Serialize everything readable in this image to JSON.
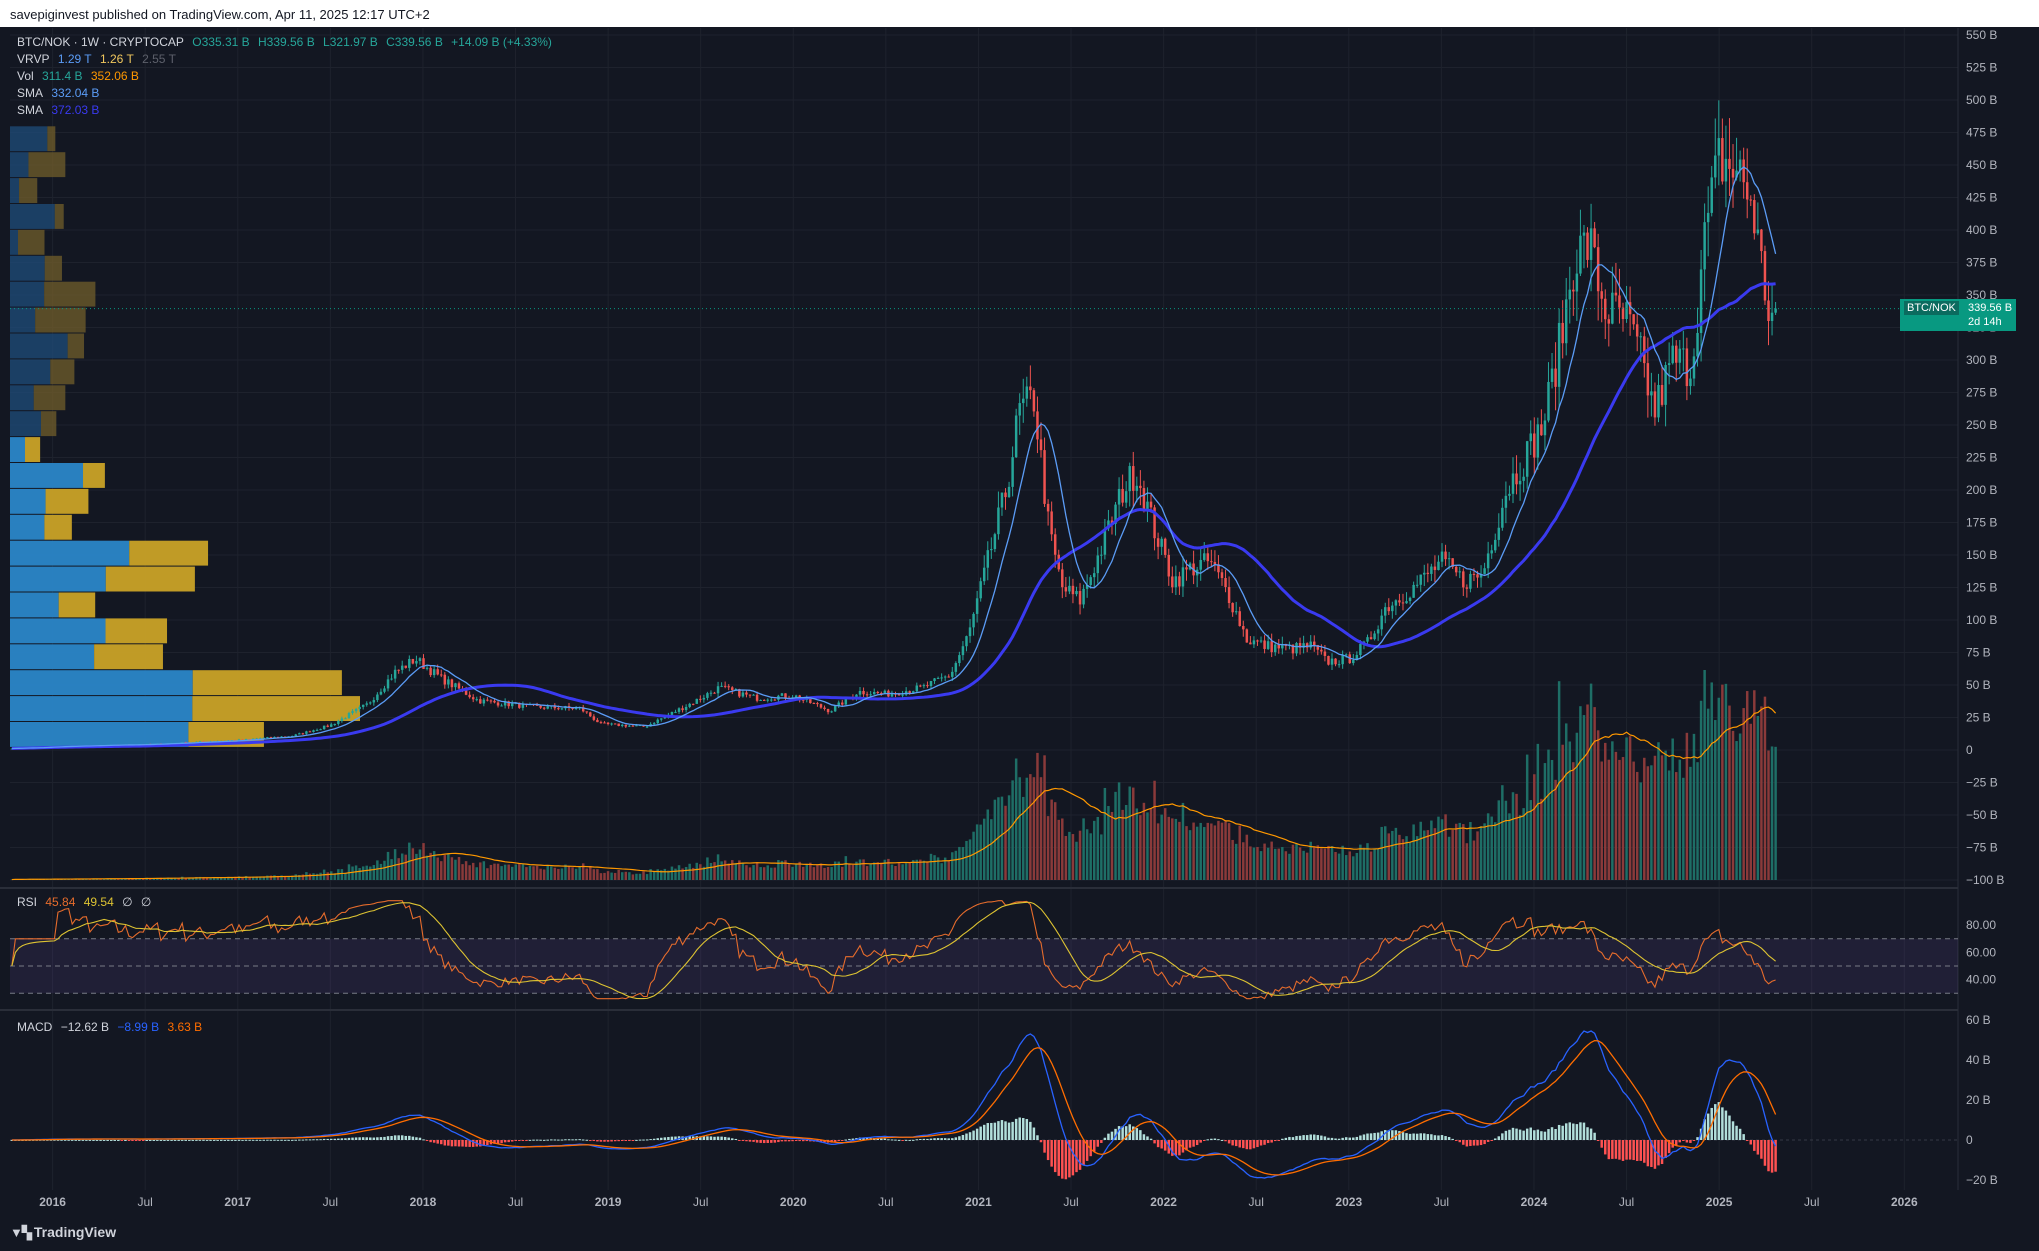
{
  "publisher": "savepiginvest published on TradingView.com, Apr 11, 2025 12:17 UTC+2",
  "brand": "TradingView",
  "legend": {
    "symbol": "BTC/NOK · 1W · CRYPTOCAP",
    "open": "O335.31 B",
    "high": "H339.56 B",
    "low": "L321.97 B",
    "close": "C339.56 B",
    "change": "+14.09 B (+4.33%)",
    "vrvp_label": "VRVP",
    "vrvp_1": "1.29 T",
    "vrvp_2": "1.26 T",
    "vrvp_3": "2.55 T",
    "vol_label": "Vol",
    "vol_1": "311.4 B",
    "vol_2": "352.06 B",
    "sma1_label": "SMA",
    "sma1_value": "332.04 B",
    "sma2_label": "SMA",
    "sma2_value": "372.03 B"
  },
  "rsi_legend": {
    "label": "RSI",
    "v1": "45.84",
    "v2": "49.54",
    "v3": "∅",
    "v4": "∅"
  },
  "macd_legend": {
    "label": "MACD",
    "v1": "−12.62 B",
    "v2": "−8.99 B",
    "v3": "3.63 B"
  },
  "price_tag": {
    "symbol": "BTC/NOK",
    "price": "339.56 B",
    "countdown": "2d 14h"
  },
  "colors": {
    "background": "#131722",
    "up": "#26a69a",
    "down": "#ef5350",
    "sma_fast": "#5b9cf6",
    "sma_slow": "#3a3af0",
    "rsi_line": "#e66c2c",
    "rsi_ma": "#ddc332",
    "macd_line": "#2962ff",
    "signal_line": "#ff6d00"
  },
  "chart_data": [
    {
      "type": "candlestick",
      "title": "BTC/NOK · 1W · CRYPTOCAP",
      "x_ticks": [
        "2016",
        "Jul",
        "2017",
        "Jul",
        "2018",
        "Jul",
        "2019",
        "Jul",
        "2020",
        "Jul",
        "2021",
        "Jul",
        "2022",
        "Jul",
        "2023",
        "Jul",
        "2024",
        "Jul",
        "2025",
        "Jul",
        "2026"
      ],
      "x_range": [
        2015.77,
        2026.29
      ],
      "y_ticks": [
        "550 B",
        "525 B",
        "500 B",
        "475 B",
        "450 B",
        "425 B",
        "400 B",
        "375 B",
        "350 B",
        "325 B",
        "300 B",
        "275 B",
        "250 B",
        "225 B",
        "200 B",
        "175 B",
        "150 B",
        "125 B",
        "100 B",
        "75 B",
        "50 B",
        "25 B",
        "0",
        "−25 B",
        "−50 B",
        "−75 B",
        "−100 B"
      ],
      "y_range": [
        -100,
        550
      ],
      "unit": "B NOK",
      "price_path": [
        [
          2015.78,
          1.2
        ],
        [
          2016.0,
          2.7
        ],
        [
          2016.5,
          4.4
        ],
        [
          2017.0,
          7.6
        ],
        [
          2017.3,
          11
        ],
        [
          2017.5,
          19
        ],
        [
          2017.7,
          35
        ],
        [
          2017.85,
          60
        ],
        [
          2017.96,
          70
        ],
        [
          2018.1,
          55
        ],
        [
          2018.3,
          38
        ],
        [
          2018.6,
          33
        ],
        [
          2018.85,
          32
        ],
        [
          2018.96,
          20
        ],
        [
          2019.2,
          18
        ],
        [
          2019.45,
          36
        ],
        [
          2019.6,
          48
        ],
        [
          2019.8,
          40
        ],
        [
          2020.0,
          42
        ],
        [
          2020.2,
          30
        ],
        [
          2020.35,
          45
        ],
        [
          2020.5,
          43
        ],
        [
          2020.7,
          48
        ],
        [
          2020.85,
          58
        ],
        [
          2020.95,
          90
        ],
        [
          2021.05,
          145
        ],
        [
          2021.15,
          200
        ],
        [
          2021.22,
          260
        ],
        [
          2021.3,
          270
        ],
        [
          2021.38,
          170
        ],
        [
          2021.45,
          125
        ],
        [
          2021.55,
          115
        ],
        [
          2021.65,
          150
        ],
        [
          2021.78,
          200
        ],
        [
          2021.85,
          215
        ],
        [
          2021.95,
          170
        ],
        [
          2022.05,
          130
        ],
        [
          2022.15,
          140
        ],
        [
          2022.25,
          145
        ],
        [
          2022.35,
          120
        ],
        [
          2022.45,
          85
        ],
        [
          2022.55,
          80
        ],
        [
          2022.7,
          78
        ],
        [
          2022.8,
          80
        ],
        [
          2022.88,
          68
        ],
        [
          2023.0,
          70
        ],
        [
          2023.1,
          82
        ],
        [
          2023.2,
          110
        ],
        [
          2023.35,
          125
        ],
        [
          2023.5,
          145
        ],
        [
          2023.62,
          130
        ],
        [
          2023.72,
          135
        ],
        [
          2023.85,
          200
        ],
        [
          2023.95,
          225
        ],
        [
          2024.05,
          250
        ],
        [
          2024.15,
          320
        ],
        [
          2024.22,
          380
        ],
        [
          2024.3,
          390
        ],
        [
          2024.38,
          340
        ],
        [
          2024.5,
          330
        ],
        [
          2024.58,
          300
        ],
        [
          2024.65,
          260
        ],
        [
          2024.75,
          300
        ],
        [
          2024.85,
          295
        ],
        [
          2024.92,
          390
        ],
        [
          2025.0,
          455
        ],
        [
          2025.05,
          450
        ],
        [
          2025.12,
          440
        ],
        [
          2025.18,
          420
        ],
        [
          2025.24,
          360
        ],
        [
          2025.28,
          330
        ],
        [
          2025.31,
          339.56
        ]
      ],
      "series": [
        {
          "name": "SMA",
          "value": "332.04 B"
        },
        {
          "name": "SMA",
          "value": "372.03 B"
        },
        {
          "name": "Vol",
          "value": "311.4 B"
        }
      ],
      "volume_profile_bars": 24,
      "last_price": 339.56
    },
    {
      "type": "line",
      "title": "RSI",
      "y_ticks": [
        "80.00",
        "60.00",
        "40.00"
      ],
      "y_range": [
        25,
        100
      ],
      "levels": [
        70,
        50,
        30
      ],
      "series": [
        {
          "name": "RSI",
          "last": 45.84
        },
        {
          "name": "RSI MA",
          "last": 49.54
        }
      ]
    },
    {
      "type": "line",
      "title": "MACD",
      "y_ticks": [
        "60 B",
        "40 B",
        "20 B",
        "0",
        "−20 B"
      ],
      "y_range": [
        -25,
        60
      ],
      "series": [
        {
          "name": "MACD",
          "last": -12.62
        },
        {
          "name": "Signal",
          "last": -8.99
        },
        {
          "name": "Histogram",
          "last": 3.63
        }
      ]
    }
  ]
}
